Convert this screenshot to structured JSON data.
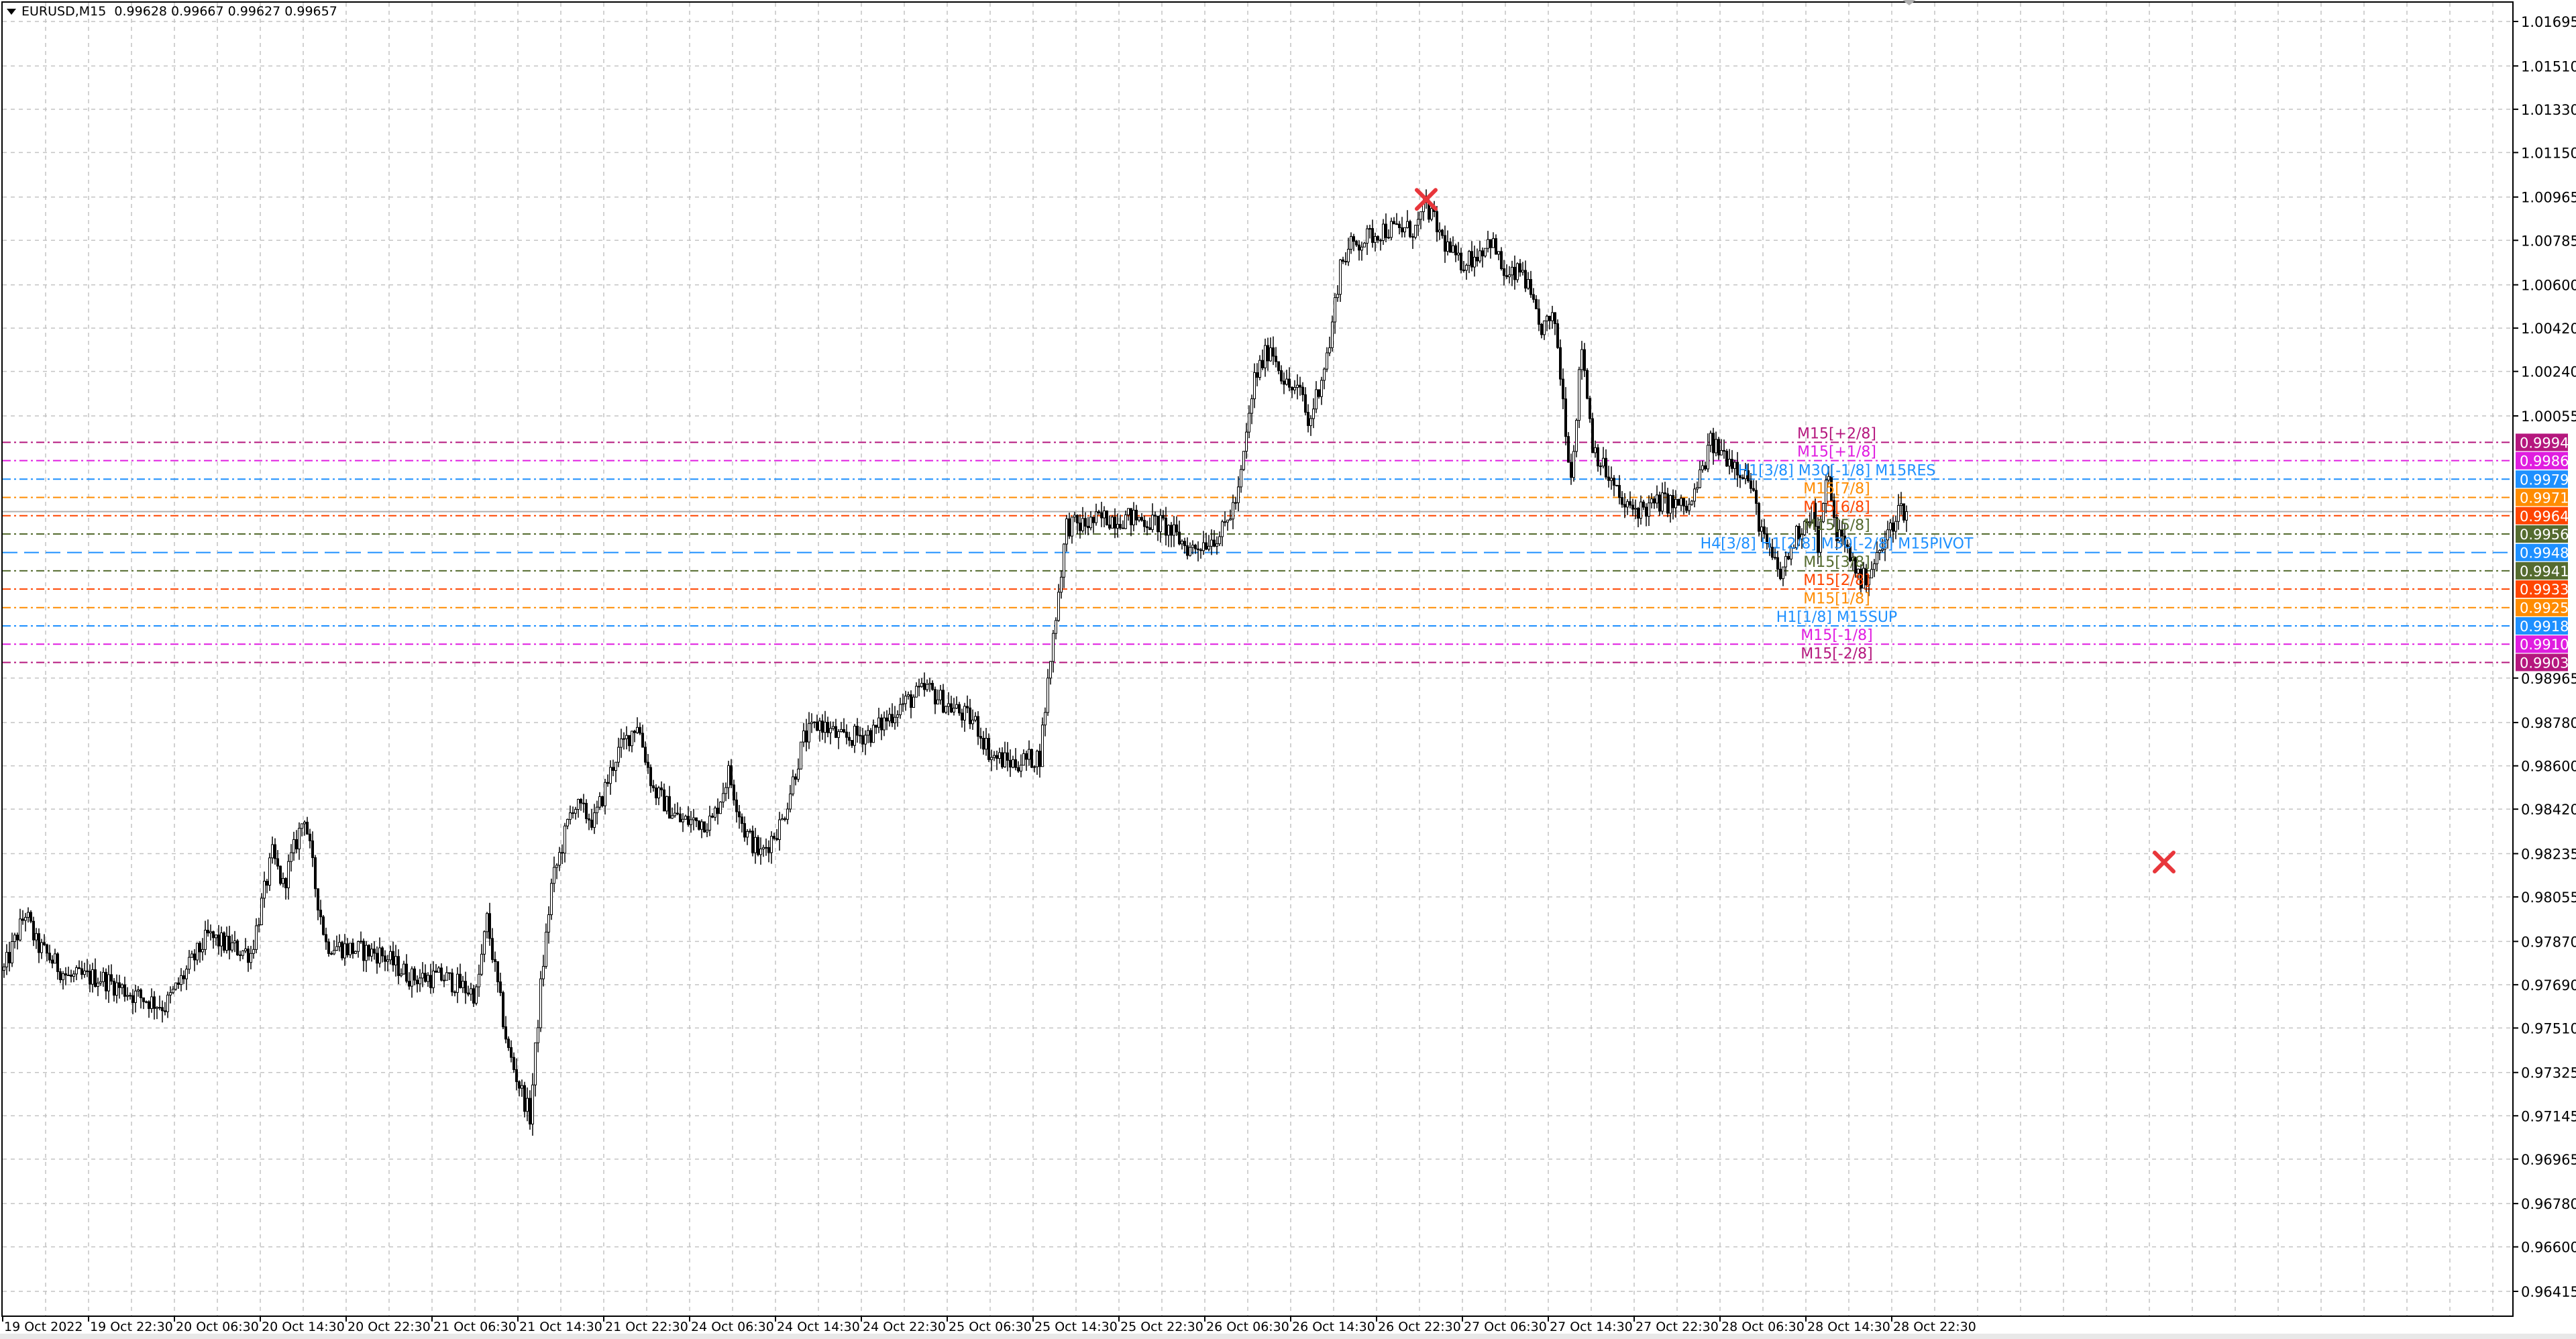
{
  "header": {
    "symbol_timeframe": "EURUSD,M15",
    "ohlc": "0.99628 0.99667 0.99627 0.99657"
  },
  "chart_data": {
    "type": "candlestick",
    "symbol": "EURUSD",
    "timeframe": "M15",
    "last_price": 0.99657,
    "price_ticks": [
      "1.01695",
      "1.01510",
      "1.01330",
      "1.01150",
      "1.00965",
      "1.00785",
      "1.00600",
      "1.00420",
      "1.00240",
      "1.00055",
      "0.98965",
      "0.98780",
      "0.98600",
      "0.98420",
      "0.98235",
      "0.98055",
      "0.97870",
      "0.97690",
      "0.97510",
      "0.97325",
      "0.97145",
      "0.96965",
      "0.96780",
      "0.96600",
      "0.96415"
    ],
    "price_range": [
      0.96415,
      1.01695
    ],
    "time_ticks": [
      "19 Oct 2022",
      "19 Oct 22:30",
      "20 Oct 06:30",
      "20 Oct 14:30",
      "20 Oct 22:30",
      "21 Oct 06:30",
      "21 Oct 14:30",
      "21 Oct 22:30",
      "24 Oct 06:30",
      "24 Oct 14:30",
      "24 Oct 22:30",
      "25 Oct 06:30",
      "25 Oct 14:30",
      "25 Oct 22:30",
      "26 Oct 06:30",
      "26 Oct 14:30",
      "26 Oct 22:30",
      "27 Oct 06:30",
      "27 Oct 14:30",
      "27 Oct 22:30",
      "28 Oct 06:30",
      "28 Oct 14:30",
      "28 Oct 22:30"
    ],
    "grid": true,
    "close_path": [
      [
        "19 14:30",
        0.9775
      ],
      [
        "19 16:30",
        0.9799
      ],
      [
        "19 17:30",
        0.9786
      ],
      [
        "19 20:30",
        0.9772
      ],
      [
        "19 23:30",
        0.9772
      ],
      [
        "20 02:30",
        0.9765
      ],
      [
        "20 05:30",
        0.976
      ],
      [
        "20 08:30",
        0.9782
      ],
      [
        "20 09:30",
        0.9789
      ],
      [
        "20 11:30",
        0.9785
      ],
      [
        "20 13:30",
        0.9782
      ],
      [
        "20 15:30",
        0.9823
      ],
      [
        "20 16:30",
        0.981
      ],
      [
        "20 18:30",
        0.984
      ],
      [
        "20 19:30",
        0.981
      ],
      [
        "20 20:30",
        0.9786
      ],
      [
        "20 22:30",
        0.9784
      ],
      [
        "21 01:30",
        0.9782
      ],
      [
        "21 04:30",
        0.9772
      ],
      [
        "21 07:30",
        0.9772
      ],
      [
        "21 10:30",
        0.9765
      ],
      [
        "21 11:30",
        0.9796
      ],
      [
        "21 12:30",
        0.9768
      ],
      [
        "21 13:30",
        0.9741
      ],
      [
        "21 15:30",
        0.9714
      ],
      [
        "21 16:30",
        0.9768
      ],
      [
        "21 17:30",
        0.981
      ],
      [
        "21 19:30",
        0.9844
      ],
      [
        "21 21:30",
        0.9837
      ],
      [
        "21 23:30",
        0.9864
      ],
      [
        "24 01:30",
        0.9878
      ],
      [
        "24 03:00",
        0.985
      ],
      [
        "24 05:30",
        0.9837
      ],
      [
        "24 08:30",
        0.9837
      ],
      [
        "24 10:00",
        0.9857
      ],
      [
        "24 11:30",
        0.9833
      ],
      [
        "24 13:00",
        0.9823
      ],
      [
        "24 15:00",
        0.9837
      ],
      [
        "24 17:00",
        0.9871
      ],
      [
        "24 18:30",
        0.9878
      ],
      [
        "24 20:30",
        0.9871
      ],
      [
        "24 23:30",
        0.9874
      ],
      [
        "25 02:00",
        0.9885
      ],
      [
        "25 04:30",
        0.9892
      ],
      [
        "25 06:30",
        0.9885
      ],
      [
        "25 09:00",
        0.9878
      ],
      [
        "25 10:30",
        0.9864
      ],
      [
        "25 12:30",
        0.9861
      ],
      [
        "25 15:00",
        0.9864
      ],
      [
        "25 16:00",
        0.9905
      ],
      [
        "25 17:30",
        0.996
      ],
      [
        "25 19:00",
        0.996
      ],
      [
        "25 21:00",
        0.9963
      ],
      [
        "26 00:00",
        0.9963
      ],
      [
        "26 02:30",
        0.996
      ],
      [
        "26 05:00",
        0.995
      ],
      [
        "26 08:00",
        0.9957
      ],
      [
        "26 09:30",
        0.9973
      ],
      [
        "26 11:00",
        1.0021
      ],
      [
        "26 12:30",
        1.0035
      ],
      [
        "26 14:00",
        1.0018
      ],
      [
        "26 15:30",
        1.0014
      ],
      [
        "26 16:00",
        1.0001
      ],
      [
        "26 18:00",
        1.0035
      ],
      [
        "26 19:00",
        1.0069
      ],
      [
        "26 20:00",
        1.0076
      ],
      [
        "26 23:00",
        1.0083
      ],
      [
        "27 02:00",
        1.0083
      ],
      [
        "27 03:00",
        1.0093
      ],
      [
        "27 04:30",
        1.0079
      ],
      [
        "27 06:00",
        1.0069
      ],
      [
        "27 07:30",
        1.0072
      ],
      [
        "27 09:00",
        1.0079
      ],
      [
        "27 10:30",
        1.0062
      ],
      [
        "27 12:00",
        1.0066
      ],
      [
        "27 13:30",
        1.0042
      ],
      [
        "27 15:00",
        1.0045
      ],
      [
        "27 16:00",
        1.0001
      ],
      [
        "27 16:30",
        0.998
      ],
      [
        "27 17:30",
        1.0035
      ],
      [
        "27 18:30",
        0.9994
      ],
      [
        "27 19:30",
        0.9984
      ],
      [
        "27 21:30",
        0.9967
      ],
      [
        "27 23:30",
        0.9967
      ],
      [
        "28 01:00",
        0.997
      ],
      [
        "28 03:30",
        0.9967
      ],
      [
        "28 04:00",
        0.9973
      ],
      [
        "28 05:30",
        0.9994
      ],
      [
        "28 07:30",
        0.9987
      ],
      [
        "28 09:00",
        0.998
      ],
      [
        "28 10:30",
        0.9953
      ],
      [
        "28 12:00",
        0.9939
      ],
      [
        "28 13:30",
        0.9956
      ],
      [
        "28 15:00",
        0.9967
      ],
      [
        "28 15:30",
        0.995
      ],
      [
        "28 16:30",
        0.9984
      ],
      [
        "28 17:00",
        0.996
      ],
      [
        "28 19:00",
        0.9943
      ],
      [
        "28 19:30",
        0.9936
      ],
      [
        "28 21:00",
        0.9946
      ],
      [
        "28 22:00",
        0.9956
      ],
      [
        "28 23:00",
        0.9967
      ],
      [
        "28 23:45",
        0.99657
      ]
    ],
    "markers": [
      {
        "icon": "red-x-icon",
        "time": "27 03:00",
        "price": 1.00955,
        "color": "#e8363b"
      },
      {
        "icon": "red-x-icon",
        "time": "31 23:45",
        "price": 0.982,
        "color": "#e8363b"
      }
    ],
    "levels": [
      {
        "price": 0.99945,
        "value": "0.99945",
        "label": "M15[+2/8]",
        "color": "#b5177e",
        "dash": "dashdot"
      },
      {
        "price": 0.99869,
        "value": "0.99869",
        "label": "M15[+1/8]",
        "color": "#e01de0",
        "dash": "dashdot"
      },
      {
        "price": 0.99792,
        "value": "0.99792",
        "label": "H1[3/8] M30[-1/8] M15RES",
        "color": "#1e90ff",
        "dash": "dashdot"
      },
      {
        "price": 0.99716,
        "value": "0.99716",
        "label": "M15[7/8]",
        "color": "#ff8c00",
        "dash": "dashdot"
      },
      {
        "price": 0.9964,
        "value": "0.99640",
        "label": "M15[6/8]",
        "color": "#ff4500",
        "dash": "dashdot"
      },
      {
        "price": 0.99564,
        "value": "0.99564",
        "label": "M15[5/8]",
        "color": "#556b2f",
        "dash": "dashdot"
      },
      {
        "price": 0.99487,
        "value": "0.99487",
        "label": "H4[3/8] H1[2/8] M30[-2/8] M15PIVOT",
        "color": "#1e90ff",
        "dash": "long"
      },
      {
        "price": 0.99411,
        "value": "0.99411",
        "label": "M15[3/8]",
        "color": "#556b2f",
        "dash": "dashdot"
      },
      {
        "price": 0.99335,
        "value": "0.99335",
        "label": "M15[2/8]",
        "color": "#ff4500",
        "dash": "dashdot"
      },
      {
        "price": 0.99258,
        "value": "0.99258",
        "label": "M15[1/8]",
        "color": "#ff8c00",
        "dash": "dashdot"
      },
      {
        "price": 0.99182,
        "value": "0.99182",
        "label": "H1[1/8] M15SUP",
        "color": "#1e90ff",
        "dash": "dashdot"
      },
      {
        "price": 0.99106,
        "value": "0.99106",
        "label": "M15[-1/8]",
        "color": "#e01de0",
        "dash": "dashdot"
      },
      {
        "price": 0.9903,
        "value": "0.99030",
        "label": "M15[-2/8]",
        "color": "#b5177e",
        "dash": "dashdot"
      }
    ],
    "colors": {
      "bull_body": "#ffffff",
      "bear_body": "#000000",
      "candle_outline": "#000000",
      "grid": "#c4c4c4",
      "last_price_line": "#b0b0b0"
    }
  }
}
